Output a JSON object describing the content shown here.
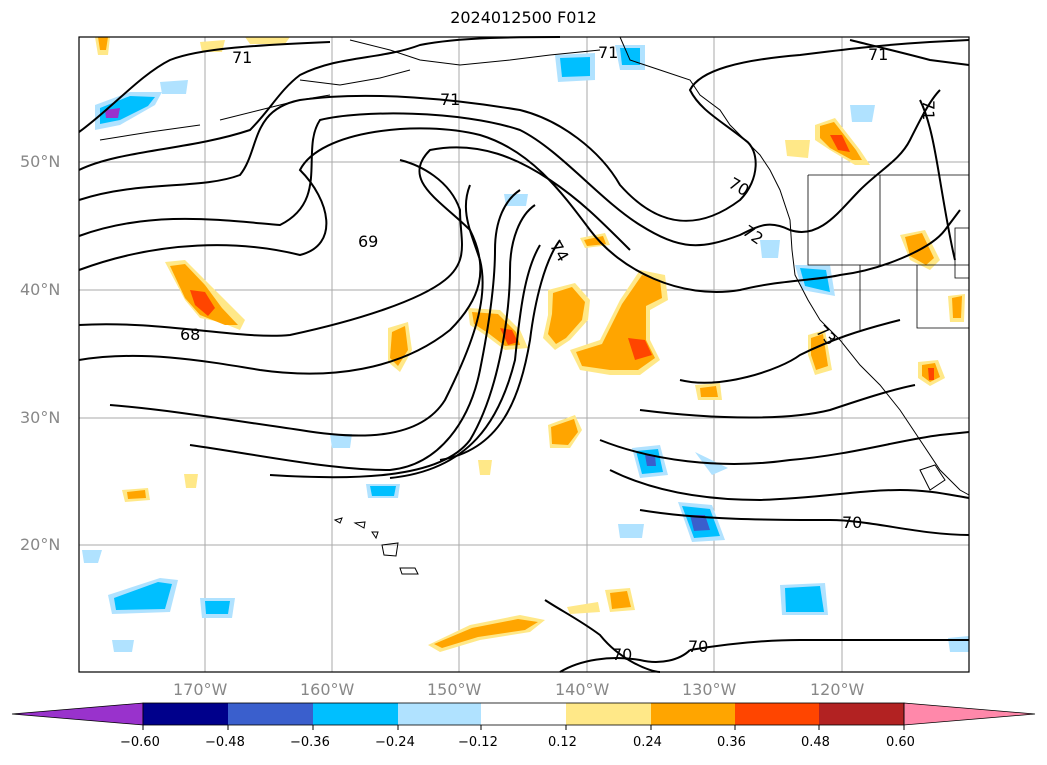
{
  "title": "2024012500 F012",
  "axes": {
    "lat_labels": [
      "50°N",
      "40°N",
      "30°N",
      "20°N"
    ],
    "lon_labels": [
      "170°W",
      "160°W",
      "150°W",
      "140°W",
      "130°W",
      "120°W"
    ]
  },
  "contour_labels": [
    "71",
    "71",
    "71",
    "71",
    "71",
    "70",
    "72",
    "74",
    "69",
    "68",
    "73",
    "70",
    "70",
    "70"
  ],
  "colorbar": {
    "ticks": [
      "−0.60",
      "−0.48",
      "−0.36",
      "−0.24",
      "−0.12",
      "0.12",
      "0.24",
      "0.36",
      "0.48",
      "0.60"
    ],
    "colors": [
      "#9932CC",
      "#00008B",
      "#3A5FCD",
      "#00BFFF",
      "#B0E2FF",
      "#FFFFFF",
      "#FFE888",
      "#FFA500",
      "#FF4500",
      "#B22222",
      "#FF88AA"
    ]
  }
}
